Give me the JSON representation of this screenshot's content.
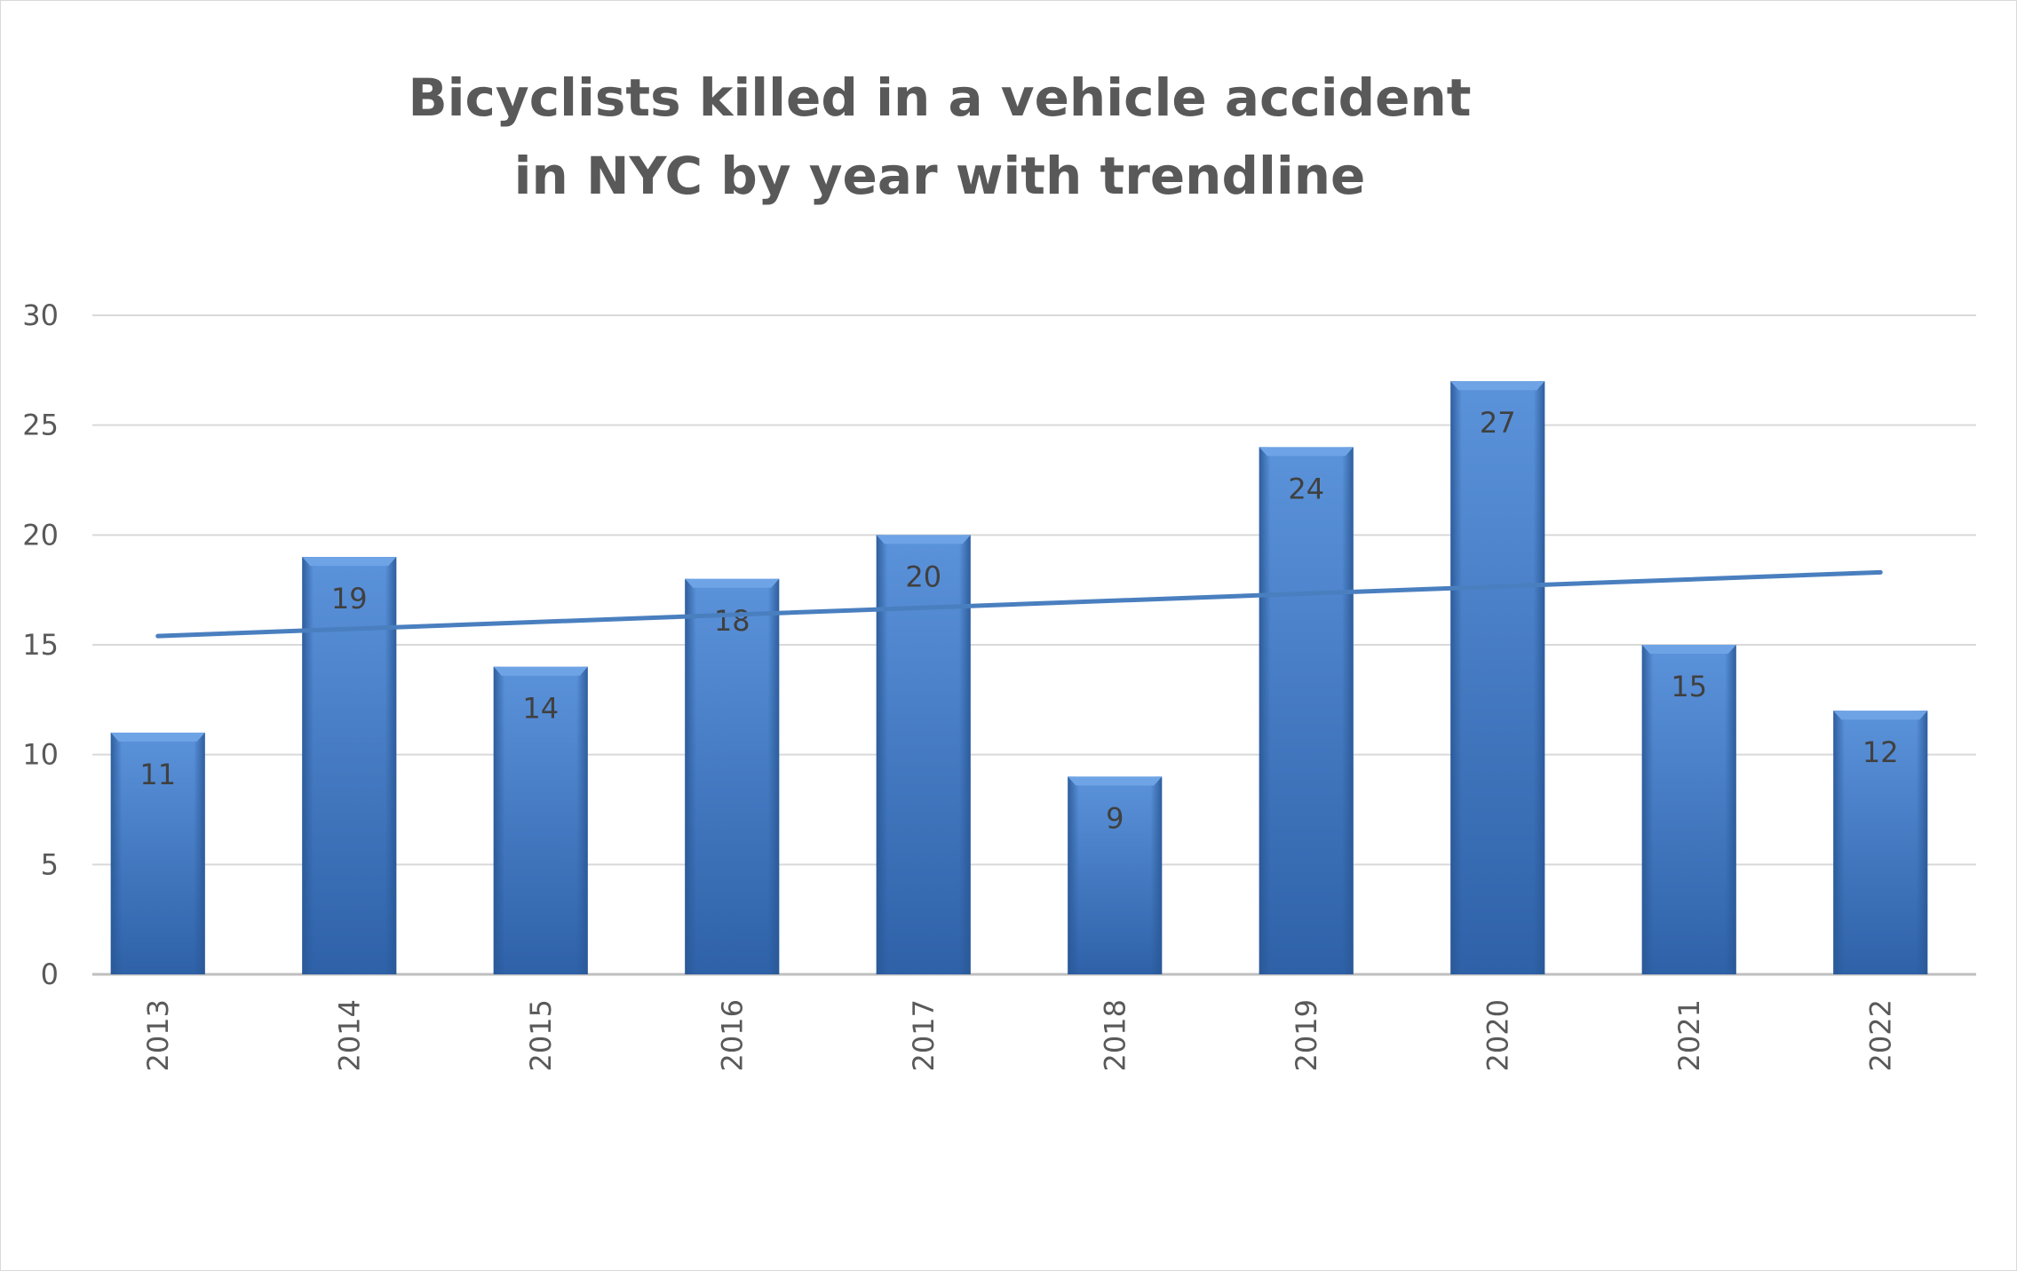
{
  "chart_data": {
    "type": "bar",
    "title_lines": [
      "Bicyclists killed in a vehicle accident",
      "in NYC  by year with trendline"
    ],
    "xlabel": "",
    "ylabel": "",
    "categories": [
      "2013",
      "2014",
      "2015",
      "2016",
      "2017",
      "2018",
      "2019",
      "2020",
      "2021",
      "2022"
    ],
    "values": [
      11,
      19,
      14,
      18,
      20,
      9,
      24,
      27,
      15,
      12
    ],
    "data_labels": [
      "11",
      "19",
      "14",
      "18",
      "20",
      "9",
      "24",
      "27",
      "15",
      "12"
    ],
    "ylim": [
      0,
      30
    ],
    "yticks": [
      0,
      5,
      10,
      15,
      20,
      25,
      30
    ],
    "ytick_labels": [
      "0",
      "5",
      "10",
      "15",
      "20",
      "25",
      "30"
    ],
    "grid": true,
    "legend": "none",
    "trendline": {
      "type": "linear",
      "start": [
        2013,
        15.4
      ],
      "end": [
        2022,
        18.3
      ]
    },
    "colors": {
      "bar": "#3b78c4",
      "bar_dark": "#2a5896",
      "bar_light": "#6ea4e6",
      "trendline": "#4a7fbf",
      "grid": "#d9d9d9",
      "text": "#595959"
    }
  }
}
